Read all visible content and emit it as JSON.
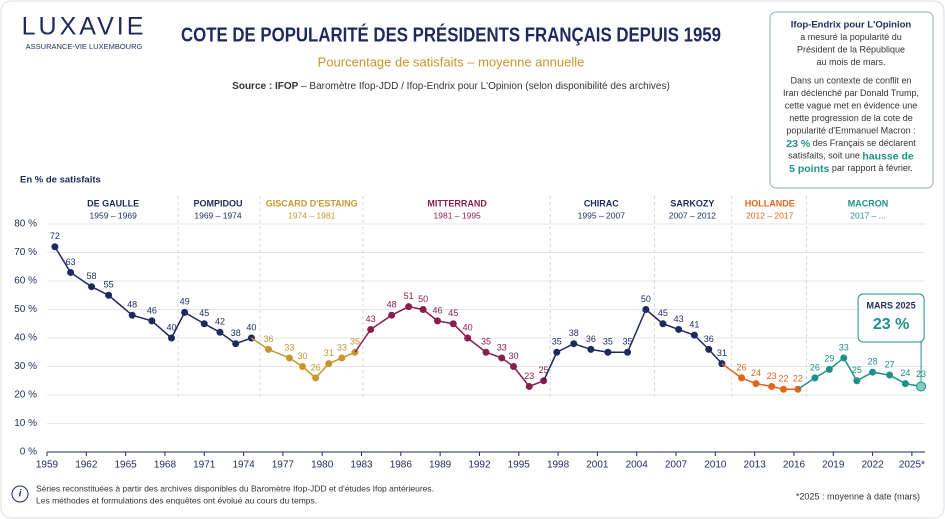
{
  "brand": {
    "name": "LUXAVIE",
    "tagline": "ASSURANCE-VIE LUXEMBOURG"
  },
  "note": {
    "heading": "Ifop-Endrix pour L'Opinion",
    "lines": [
      [
        {
          "text": "a mesuré la popularité du"
        }
      ],
      [
        {
          "text": "Président de la République"
        }
      ],
      [
        {
          "text": "au mois de mars."
        }
      ],
      [
        {
          "text": "Dans un contexte de conflit en"
        }
      ],
      [
        {
          "text": "Iran déclenché par Donald Trump,"
        }
      ],
      [
        {
          "text": "cette vague met en évidence une"
        }
      ],
      [
        {
          "text": "nette progression de la cote de"
        }
      ],
      [
        {
          "text": "popularité d'Emmanuel Macron :"
        }
      ],
      [
        {
          "text": "23 %",
          "style": "highlight"
        },
        {
          "text": " des Français se déclarent"
        }
      ],
      [
        {
          "text": "satisfaits, soit une "
        },
        {
          "text": "hausse de",
          "style": "highlight"
        }
      ],
      [
        {
          "text": "5 points",
          "style": "highlight"
        },
        {
          "text": " par rapport à février."
        }
      ]
    ]
  },
  "footnote": {
    "info": "i",
    "lines": [
      "Séries reconstituées à partir des archives disponibles du Baromètre Ifop-JDD et d'études Ifop antérieures.",
      "Les méthodes et formulations des enquêtes ont évolué au cours du temps."
    ],
    "asterisk": "*2025 : moyenne à date (mars)"
  },
  "chart_data": {
    "type": "line",
    "title": "COTE DE POPULARITÉ DES PRÉSIDENTS FRANÇAIS DEPUIS 1959",
    "subtitle": "Pourcentage de satisfaits – moyenne annuelle",
    "source_label": "Source : IFOP",
    "source_text": " – Baromètre Ifop-JDD / Ifop-Endrix pour L'Opinion (selon disponibilité des archives)",
    "y_label": "En % de satisfaits",
    "xlim": [
      1959,
      2026
    ],
    "ylim": [
      0,
      80
    ],
    "xticks": [
      1959,
      1962,
      1965,
      1968,
      1971,
      1974,
      1977,
      1980,
      1983,
      1986,
      1989,
      1992,
      1995,
      1998,
      2001,
      2004,
      2007,
      2010,
      2013,
      2016,
      2019,
      2022,
      {
        "value": 2025,
        "label": "2025*"
      }
    ],
    "yticks": [
      {
        "value": 0,
        "label": "0 %"
      },
      {
        "value": 10,
        "label": "10 %"
      },
      {
        "value": 20,
        "label": "20 %"
      },
      {
        "value": 30,
        "label": "30 %"
      },
      {
        "value": 40,
        "label": "40 %"
      },
      {
        "value": 50,
        "label": "50 %"
      },
      {
        "value": 60,
        "label": "60 %"
      },
      {
        "value": 70,
        "label": "70 %"
      },
      {
        "value": 80,
        "label": "80 %"
      }
    ],
    "grid": true,
    "series": [
      {
        "name": "DE GAULLE",
        "period": "1959 – 1969",
        "color": "#1e2a5e",
        "x": [
          1959.6,
          1960.8,
          1962.4,
          1963.7,
          1965.5,
          1967.0,
          1968.5
        ],
        "values": [
          72,
          63,
          58,
          55,
          48,
          46,
          40
        ]
      },
      {
        "name": "POMPIDOU",
        "period": "1969 – 1974",
        "color": "#1e2a5e",
        "x": [
          1969.5,
          1971.0,
          1972.2,
          1973.4,
          1974.6
        ],
        "values": [
          49,
          45,
          42,
          38,
          40
        ]
      },
      {
        "name": "GISCARD D'ESTAING",
        "period": "1974 – 1981",
        "color": "#c8962e",
        "x": [
          1975.9,
          1977.5,
          1978.5,
          1979.5,
          1980.5,
          1981.5,
          1982.5
        ],
        "values": [
          36,
          33,
          30,
          26,
          31,
          33,
          35
        ]
      },
      {
        "name": "MITTERRAND",
        "period": "1981 – 1995",
        "color": "#8a1f4f",
        "x": [
          1983.7,
          1985.3,
          1986.6,
          1987.7,
          1988.8,
          1990.0,
          1991.1,
          1992.5,
          1993.7,
          1994.6,
          1995.8,
          1996.9
        ],
        "values": [
          43,
          48,
          51,
          50,
          46,
          45,
          40,
          35,
          33,
          30,
          23,
          25
        ]
      },
      {
        "name": "CHIRAC",
        "period": "1995 – 2007",
        "color": "#1e2a5e",
        "x": [
          1997.9,
          1999.2,
          2000.5,
          2001.8,
          2003.3,
          2004.7
        ],
        "values": [
          35,
          38,
          36,
          35,
          35,
          50
        ]
      },
      {
        "name": "SARKOZY",
        "period": "2007 – 2012",
        "color": "#1e2a5e",
        "x": [
          2006.0,
          2007.2,
          2008.4,
          2009.5,
          2010.5
        ],
        "values": [
          45,
          43,
          41,
          36,
          31
        ]
      },
      {
        "name": "HOLLANDE",
        "period": "2012 – 2017",
        "color": "#e0661c",
        "x": [
          2012.0,
          2013.1,
          2014.3,
          2015.2,
          2016.3
        ],
        "values": [
          26,
          24,
          23,
          22,
          22
        ]
      },
      {
        "name": "MACRON",
        "period": "2017 – ...",
        "color": "#1e9188",
        "x": [
          2017.6,
          2018.7,
          2019.8,
          2020.8,
          2022.0,
          2023.3,
          2024.5,
          2025.7
        ],
        "values": [
          26,
          29,
          33,
          25,
          28,
          27,
          24,
          23
        ]
      }
    ],
    "callout": {
      "title": "MARS 2025",
      "label": "23 %"
    }
  }
}
